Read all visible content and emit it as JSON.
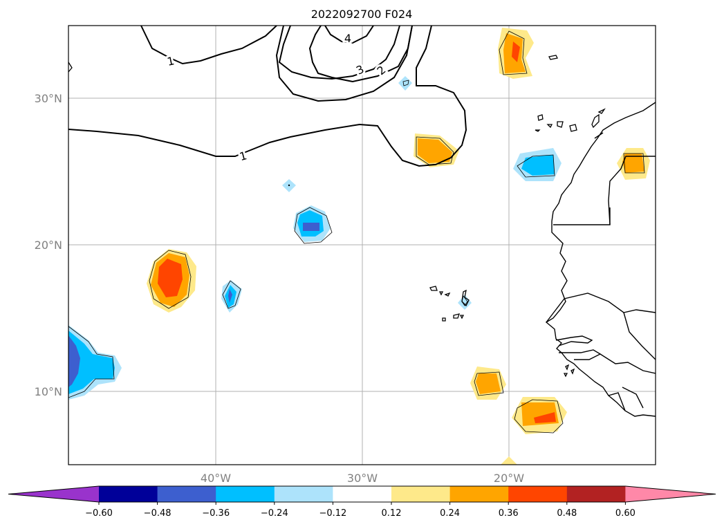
{
  "title": "2022092700 F024",
  "map": {
    "lat_labels": [
      "30°N",
      "20°N",
      "10°N"
    ],
    "lon_labels": [
      "40°W",
      "30°W",
      "20°W"
    ],
    "contour_labels": [
      "1",
      "1",
      "4",
      "3",
      "2",
      "2"
    ]
  },
  "colorbar": {
    "ticks": [
      "−0.60",
      "−0.48",
      "−0.36",
      "−0.24",
      "−0.12",
      "0.12",
      "0.24",
      "0.36",
      "0.48",
      "0.60"
    ],
    "colors": [
      "#9933cc",
      "#000099",
      "#3d5fcf",
      "#00bfff",
      "#ade3fb",
      "#ffffff",
      "#fee98a",
      "#ffa500",
      "#ff4500",
      "#b22222",
      "#ff88a8"
    ]
  }
}
